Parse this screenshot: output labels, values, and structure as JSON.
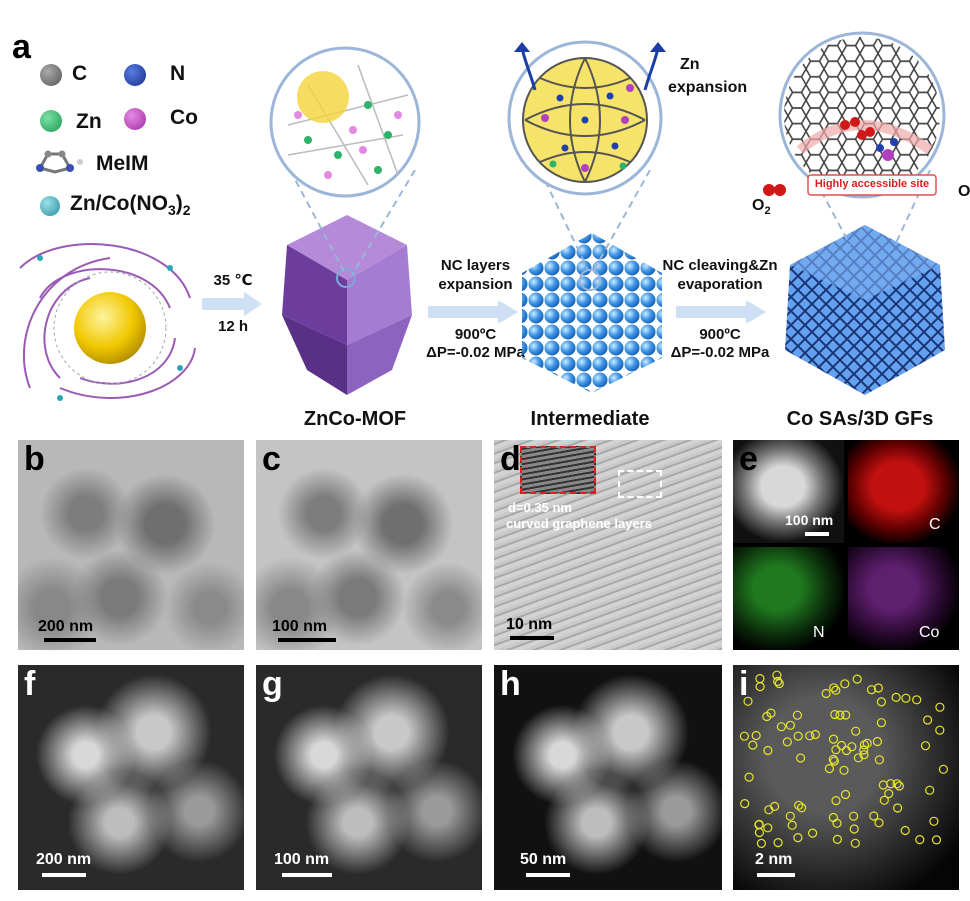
{
  "panel_labels": {
    "a": "a",
    "b": "b",
    "c": "c",
    "d": "d",
    "e": "e",
    "f": "f",
    "g": "g",
    "h": "h",
    "i": "i"
  },
  "legend": {
    "c": "C",
    "n": "N",
    "zn": "Zn",
    "co": "Co",
    "melm": "MeIM",
    "salt_prefix": "Zn/Co(NO",
    "salt_sub3": "3",
    "salt_paren": ")",
    "salt_sub2": "2"
  },
  "step1": {
    "temp": "35 ℃",
    "time": "12 h"
  },
  "step2": {
    "line1": "NC layers",
    "line2": "expansion",
    "temp": "900ºC",
    "pressure": "ΔP=-0.02 MPa"
  },
  "step3": {
    "line1": "NC cleaving&Zn",
    "line2": "evaporation",
    "temp": "900ºC",
    "pressure": "ΔP=-0.02 MPa"
  },
  "callouts": {
    "zn_exp_1": "Zn",
    "zn_exp_2": "expansion",
    "o2_left": "O",
    "o2_left_sub": "2",
    "o2_right": "O",
    "site_label": "Highly accessible site"
  },
  "captions": {
    "mof": "ZnCo-MOF",
    "intermediate": "Intermediate",
    "product": "Co SAs/3D GFs"
  },
  "scalebars": {
    "b": "200 nm",
    "c": "100 nm",
    "d": "10 nm",
    "e": "100 nm",
    "f": "200 nm",
    "g": "100 nm",
    "h": "50 nm",
    "i": "2 nm"
  },
  "d_annot": {
    "spacing": "d=0.35 nm",
    "layers": "curved graphene layers"
  },
  "e_maps": {
    "c": "C",
    "n": "N",
    "co": "Co"
  },
  "colors": {
    "c_atom": "#6b6b6b",
    "n_atom": "#1f3fa8",
    "zn_atom": "#2db36a",
    "co_atom": "#c040c0",
    "salt": "#3aa7b5",
    "mof": "#9a6bc9",
    "intermediate": "#4a9be8",
    "product": "#4f8ee0"
  }
}
